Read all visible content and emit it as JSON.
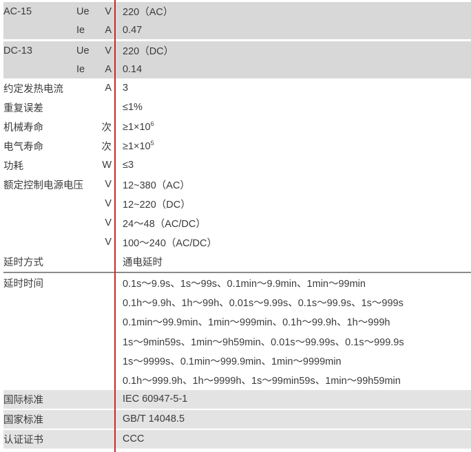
{
  "colors": {
    "divider": "#c8282a",
    "row_shade": "#d8d8d8",
    "row_shade_light": "#e3e3e3"
  },
  "rows": [
    {
      "label": "AC-15",
      "sub": "Ue",
      "unit": "V",
      "value": "220（AC）"
    },
    {
      "label": "",
      "sub": "Ie",
      "unit": "A",
      "value": "0.47"
    },
    {
      "label": "DC-13",
      "sub": "Ue",
      "unit": "V",
      "value": "220（DC）"
    },
    {
      "label": "",
      "sub": "Ie",
      "unit": "A",
      "value": "0.14"
    },
    {
      "label": "约定发热电流",
      "unit": "A",
      "value": "3"
    },
    {
      "label": "重复误差",
      "unit": "",
      "value": "≤1%"
    },
    {
      "label": "机械寿命",
      "unit": "次",
      "value": "≥1×10",
      "exp": "6"
    },
    {
      "label": "电气寿命",
      "unit": "次",
      "value": "≥1×10",
      "exp": "5"
    },
    {
      "label": "功耗",
      "unit": "W",
      "value": "≤3"
    },
    {
      "label": "额定控制电源电压",
      "unit": "V",
      "value": "12~380（AC）"
    },
    {
      "label": "",
      "unit": "V",
      "value": "12~220（DC）"
    },
    {
      "label": "",
      "unit": "V",
      "value": "24～48（AC/DC）"
    },
    {
      "label": "",
      "unit": "V",
      "value": "100～240（AC/DC）"
    },
    {
      "label": "延时方式",
      "unit": "",
      "value": "通电延时"
    }
  ],
  "delay_time": {
    "label": "延时时间",
    "lines": [
      "0.1s～9.9s、1s～99s、0.1min～9.9min、1min～99min",
      "0.1h～9.9h、1h～99h、0.01s～9.99s、0.1s～99.9s、1s～999s",
      "0.1min～99.9min、1min～999min、0.1h～99.9h、1h～999h",
      "1s～9min59s、1min～9h59min、0.01s～99.99s、0.1s～999.9s",
      "1s～9999s、0.1min～999.9min、1min～9999min",
      "0.1h～999.9h、1h～9999h、1s～99min59s、1min～99h59min"
    ]
  },
  "standards": [
    {
      "label": "国际标准",
      "value": "IEC 60947-5-1"
    },
    {
      "label": "国家标准",
      "value": "GB/T 14048.5"
    },
    {
      "label": "认证证书",
      "value": "CCC"
    }
  ]
}
